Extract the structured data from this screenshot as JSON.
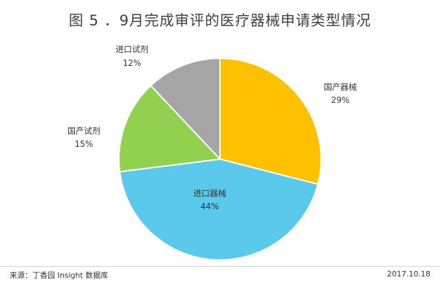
{
  "page": {
    "title": "图 5 ．9月完成审评的医疗器械申请类型情况",
    "source": "来源：丁香园 Insight 数据库",
    "date": "2017.10.18"
  },
  "chart_data": {
    "type": "pie",
    "start_angle_deg": 0,
    "direction": "clockwise",
    "slices": [
      {
        "name": "国产器械",
        "value": 29,
        "label": "29%",
        "color": "#FFC000"
      },
      {
        "name": "进口器械",
        "value": 44,
        "label": "44%",
        "color": "#5BC9EC"
      },
      {
        "name": "国产试剂",
        "value": 15,
        "label": "15%",
        "color": "#92D050"
      },
      {
        "name": "进口试剂",
        "value": 12,
        "label": "12%",
        "color": "#A5A5A5"
      }
    ],
    "legend": "none",
    "border_color": "#ffffff"
  }
}
